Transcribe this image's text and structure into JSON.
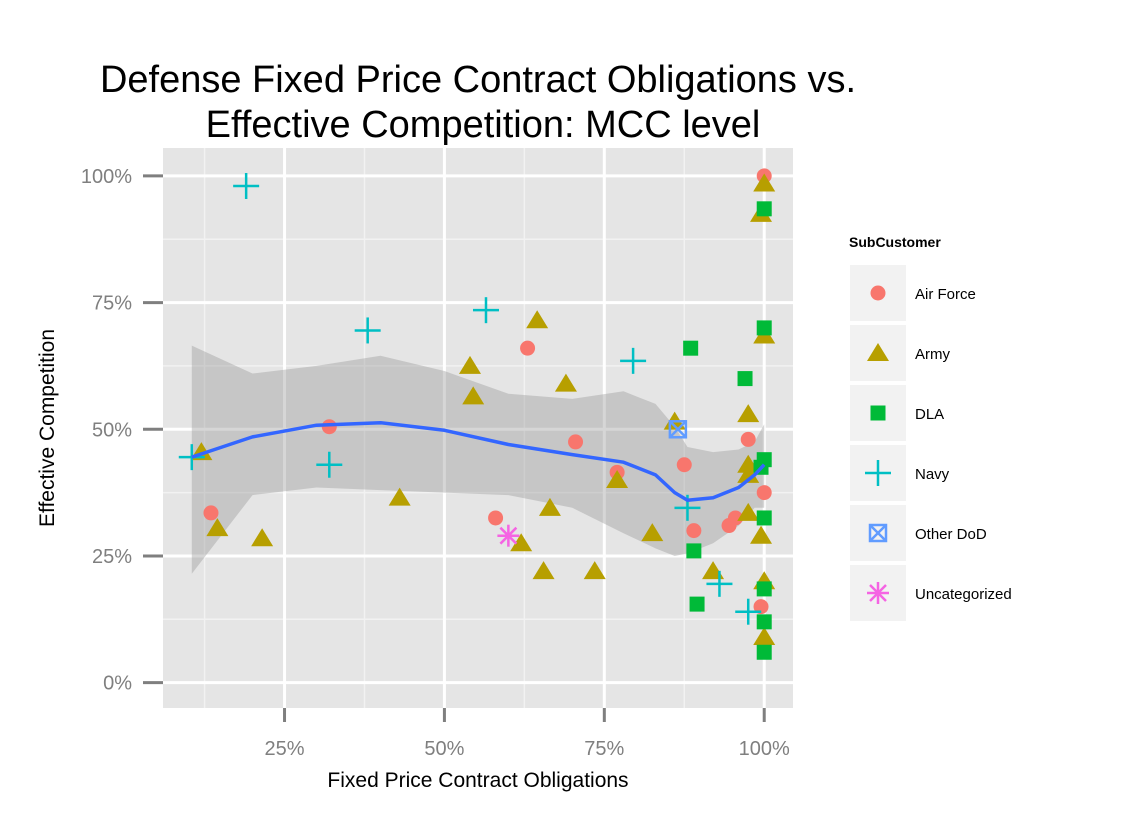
{
  "chart_data": {
    "type": "scatter",
    "title": [
      "Defense Fixed Price Contract Obligations vs.",
      "Effective Competition: MCC level"
    ],
    "xlabel": "Fixed Price Contract Obligations",
    "ylabel": "Effective Competition",
    "x_ticks": [
      {
        "value": 0.25,
        "label": "25%"
      },
      {
        "value": 0.5,
        "label": "50%"
      },
      {
        "value": 0.75,
        "label": "75%"
      },
      {
        "value": 1.0,
        "label": "100%"
      }
    ],
    "y_ticks": [
      {
        "value": 0.0,
        "label": "0%"
      },
      {
        "value": 0.25,
        "label": "25%"
      },
      {
        "value": 0.5,
        "label": "50%"
      },
      {
        "value": 0.75,
        "label": "75%"
      },
      {
        "value": 1.0,
        "label": "100%"
      }
    ],
    "xlim": [
      0.06,
      1.045
    ],
    "ylim": [
      -0.05,
      1.055
    ],
    "grid": true,
    "legend_position": "right",
    "legend_title": "SubCustomer",
    "series": [
      {
        "name": "Air Force",
        "shape": "circle",
        "color": "#F8766D",
        "points": [
          [
            1.0,
            1.0
          ],
          [
            0.63,
            0.66
          ],
          [
            0.32,
            0.505
          ],
          [
            0.705,
            0.475
          ],
          [
            0.975,
            0.48
          ],
          [
            0.875,
            0.43
          ],
          [
            0.77,
            0.415
          ],
          [
            0.135,
            0.335
          ],
          [
            0.58,
            0.325
          ],
          [
            0.955,
            0.325
          ],
          [
            0.89,
            0.3
          ],
          [
            0.945,
            0.31
          ],
          [
            1.0,
            0.375
          ],
          [
            0.995,
            0.15
          ]
        ]
      },
      {
        "name": "Army",
        "shape": "triangle",
        "color": "#B79F00",
        "points": [
          [
            1.0,
            0.985
          ],
          [
            0.995,
            0.925
          ],
          [
            0.645,
            0.715
          ],
          [
            1.0,
            0.685
          ],
          [
            0.54,
            0.625
          ],
          [
            0.69,
            0.59
          ],
          [
            0.545,
            0.565
          ],
          [
            0.975,
            0.53
          ],
          [
            0.86,
            0.515
          ],
          [
            0.975,
            0.43
          ],
          [
            0.975,
            0.41
          ],
          [
            0.12,
            0.455
          ],
          [
            0.77,
            0.4
          ],
          [
            0.43,
            0.365
          ],
          [
            0.665,
            0.345
          ],
          [
            0.975,
            0.335
          ],
          [
            0.145,
            0.305
          ],
          [
            0.825,
            0.295
          ],
          [
            0.995,
            0.29
          ],
          [
            0.215,
            0.285
          ],
          [
            0.62,
            0.275
          ],
          [
            0.655,
            0.22
          ],
          [
            0.735,
            0.22
          ],
          [
            0.92,
            0.22
          ],
          [
            1.0,
            0.2
          ],
          [
            1.0,
            0.09
          ]
        ]
      },
      {
        "name": "DLA",
        "shape": "square",
        "color": "#00BA38",
        "points": [
          [
            1.0,
            0.935
          ],
          [
            1.0,
            0.7
          ],
          [
            0.885,
            0.66
          ],
          [
            0.97,
            0.6
          ],
          [
            1.0,
            0.44
          ],
          [
            0.995,
            0.425
          ],
          [
            1.0,
            0.325
          ],
          [
            0.89,
            0.26
          ],
          [
            1.0,
            0.185
          ],
          [
            0.895,
            0.155
          ],
          [
            1.0,
            0.12
          ],
          [
            1.0,
            0.06
          ]
        ]
      },
      {
        "name": "Navy",
        "shape": "plus",
        "color": "#00BFC4",
        "points": [
          [
            0.19,
            0.98
          ],
          [
            0.565,
            0.735
          ],
          [
            0.38,
            0.695
          ],
          [
            0.795,
            0.635
          ],
          [
            0.105,
            0.445
          ],
          [
            0.32,
            0.43
          ],
          [
            0.88,
            0.345
          ],
          [
            0.93,
            0.195
          ],
          [
            0.975,
            0.14
          ]
        ]
      },
      {
        "name": "Other DoD",
        "shape": "square-cross",
        "color": "#619CFF",
        "points": [
          [
            0.865,
            0.5
          ]
        ]
      },
      {
        "name": "Uncategorized",
        "shape": "asterisk",
        "color": "#F564E3",
        "points": [
          [
            0.6,
            0.29
          ]
        ]
      }
    ],
    "smooth": {
      "method": "loess",
      "color": "#3366FF",
      "fit": [
        [
          0.105,
          0.445
        ],
        [
          0.2,
          0.485
        ],
        [
          0.3,
          0.508
        ],
        [
          0.4,
          0.513
        ],
        [
          0.5,
          0.498
        ],
        [
          0.6,
          0.47
        ],
        [
          0.7,
          0.45
        ],
        [
          0.78,
          0.435
        ],
        [
          0.83,
          0.41
        ],
        [
          0.86,
          0.375
        ],
        [
          0.88,
          0.36
        ],
        [
          0.92,
          0.365
        ],
        [
          0.96,
          0.385
        ],
        [
          0.985,
          0.41
        ],
        [
          1.0,
          0.43
        ]
      ],
      "ci_upper": [
        [
          0.105,
          0.665
        ],
        [
          0.2,
          0.61
        ],
        [
          0.3,
          0.625
        ],
        [
          0.4,
          0.645
        ],
        [
          0.5,
          0.615
        ],
        [
          0.6,
          0.57
        ],
        [
          0.7,
          0.56
        ],
        [
          0.78,
          0.575
        ],
        [
          0.83,
          0.55
        ],
        [
          0.86,
          0.505
        ],
        [
          0.88,
          0.465
        ],
        [
          0.92,
          0.455
        ],
        [
          0.96,
          0.46
        ],
        [
          0.985,
          0.475
        ],
        [
          1.0,
          0.51
        ]
      ],
      "ci_lower": [
        [
          0.105,
          0.215
        ],
        [
          0.2,
          0.37
        ],
        [
          0.3,
          0.385
        ],
        [
          0.4,
          0.38
        ],
        [
          0.5,
          0.375
        ],
        [
          0.6,
          0.37
        ],
        [
          0.7,
          0.345
        ],
        [
          0.78,
          0.295
        ],
        [
          0.83,
          0.265
        ],
        [
          0.86,
          0.25
        ],
        [
          0.88,
          0.255
        ],
        [
          0.92,
          0.275
        ],
        [
          0.96,
          0.31
        ],
        [
          0.985,
          0.345
        ],
        [
          1.0,
          0.345
        ]
      ]
    }
  }
}
